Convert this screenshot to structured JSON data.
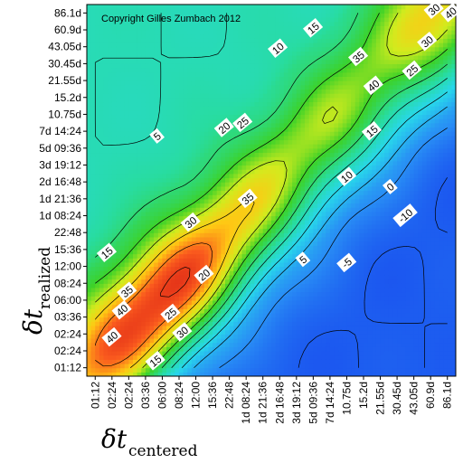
{
  "chart_data": {
    "type": "heatmap",
    "copyright": "Copyright Gilles Zumbach 2012",
    "xlabel": {
      "main": "δt",
      "sub": "centered"
    },
    "ylabel": {
      "main": "δt",
      "sub": "realized"
    },
    "x_tick_labels": [
      "01:12",
      "02:24",
      "02:24",
      "03:36",
      "06:00",
      "08:24",
      "12:00",
      "15:36",
      "22:48",
      "1d 08:24",
      "1d 21:36",
      "2d 16:48",
      "3d 19:12",
      "5d 09:36",
      "7d 14:24",
      "10.75d",
      "15.2d",
      "21.55d",
      "30.45d",
      "43.05d",
      "60.9d",
      "86.1d"
    ],
    "y_tick_labels": [
      "01:12",
      "02:24",
      "02:24",
      "03:36",
      "06:00",
      "08:24",
      "12:00",
      "15:36",
      "22:48",
      "1d 08:24",
      "1d 21:36",
      "2d 16:48",
      "3d 19:12",
      "5d 09:36",
      "7d 14:24",
      "10.75d",
      "15.2d",
      "21.55d",
      "30.45d",
      "43.05d",
      "60.9d",
      "86.1d"
    ],
    "grid": false,
    "colorbar": false,
    "contour_levels": [
      -10,
      -5,
      0,
      5,
      10,
      15,
      20,
      25,
      30,
      35,
      40
    ],
    "value_range": [
      -15,
      45
    ],
    "contour_labels": [
      {
        "text": "-10",
        "x": 18.5,
        "y": 9.0
      },
      {
        "text": "-5",
        "x": 15.0,
        "y": 6.2
      },
      {
        "text": "0",
        "x": 17.6,
        "y": 10.7
      },
      {
        "text": "5",
        "x": 12.4,
        "y": 6.4
      },
      {
        "text": "5",
        "x": 3.7,
        "y": 13.7
      },
      {
        "text": "10",
        "x": 15.0,
        "y": 11.3
      },
      {
        "text": "10",
        "x": 10.9,
        "y": 18.9
      },
      {
        "text": "15",
        "x": 3.6,
        "y": 0.4
      },
      {
        "text": "15",
        "x": 16.5,
        "y": 14.0
      },
      {
        "text": "15",
        "x": 13.0,
        "y": 20.1
      },
      {
        "text": "15",
        "x": 0.7,
        "y": 6.8
      },
      {
        "text": "20",
        "x": 6.5,
        "y": 5.5
      },
      {
        "text": "20",
        "x": 7.7,
        "y": 14.2
      },
      {
        "text": "25",
        "x": 4.5,
        "y": 3.2
      },
      {
        "text": "25",
        "x": 18.9,
        "y": 17.6
      },
      {
        "text": "25",
        "x": 8.8,
        "y": 14.5
      },
      {
        "text": "30",
        "x": 5.2,
        "y": 2.1
      },
      {
        "text": "30",
        "x": 5.7,
        "y": 8.6
      },
      {
        "text": "30",
        "x": 19.8,
        "y": 19.3
      },
      {
        "text": "30",
        "x": 20.2,
        "y": 21.2
      },
      {
        "text": "35",
        "x": 1.9,
        "y": 4.5
      },
      {
        "text": "35",
        "x": 9.1,
        "y": 10.0
      },
      {
        "text": "35",
        "x": 15.7,
        "y": 18.4
      },
      {
        "text": "40",
        "x": 1.6,
        "y": 3.4
      },
      {
        "text": "40",
        "x": 1.0,
        "y": 1.8
      },
      {
        "text": "40",
        "x": 16.6,
        "y": 16.7
      },
      {
        "text": "40",
        "x": 21.2,
        "y": 21.0
      }
    ]
  }
}
